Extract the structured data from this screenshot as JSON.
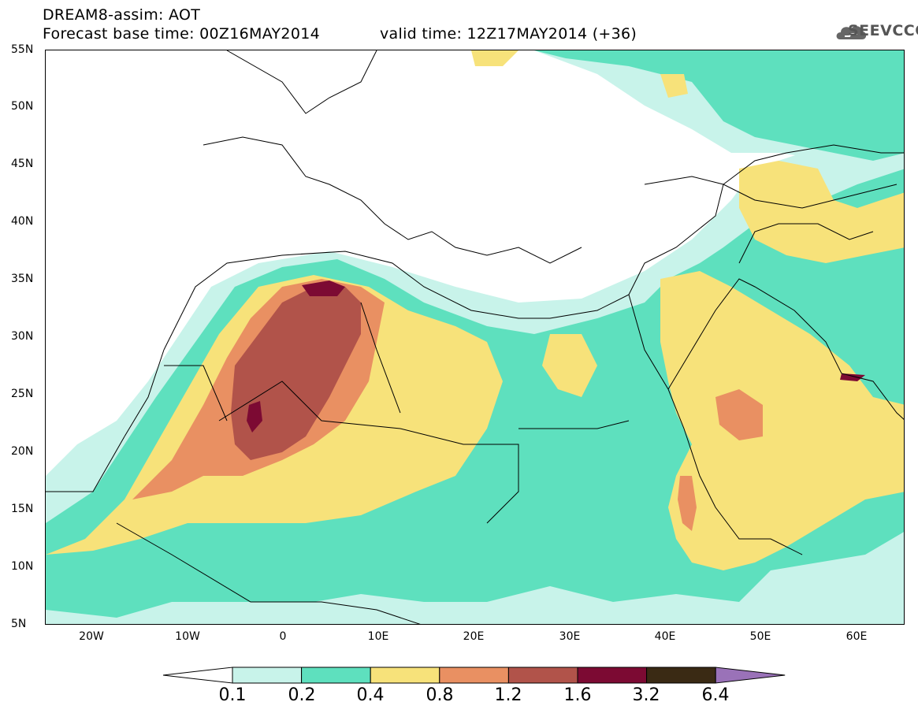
{
  "header": {
    "title": "DREAM8-assim: AOT",
    "base_time": "Forecast base time: 00Z16MAY2014",
    "valid_time": "valid time: 12Z17MAY2014 (+36)"
  },
  "logo": {
    "text": "SEEVCCC",
    "icon": "cloud-logo-icon"
  },
  "map": {
    "lat_labels": [
      "55N",
      "50N",
      "45N",
      "40N",
      "35N",
      "30N",
      "25N",
      "20N",
      "15N",
      "10N",
      "5N"
    ],
    "lon_labels": [
      "20W",
      "10W",
      "0",
      "10E",
      "20E",
      "30E",
      "40E",
      "50E",
      "60E"
    ],
    "lat_range": [
      5,
      55
    ],
    "lon_range": [
      -25,
      65
    ],
    "field": "Aerosol optical thickness (dust)"
  },
  "colorbar": {
    "levels": [
      "0.1",
      "0.2",
      "0.4",
      "0.8",
      "1.2",
      "1.6",
      "3.2",
      "6.4"
    ],
    "colors": [
      "#c8f3ea",
      "#5ee0be",
      "#f7e27a",
      "#e99062",
      "#b1534a",
      "#7c0a33",
      "#3a2a14",
      "#9a72b8"
    ],
    "under_color": "#ffffff"
  }
}
